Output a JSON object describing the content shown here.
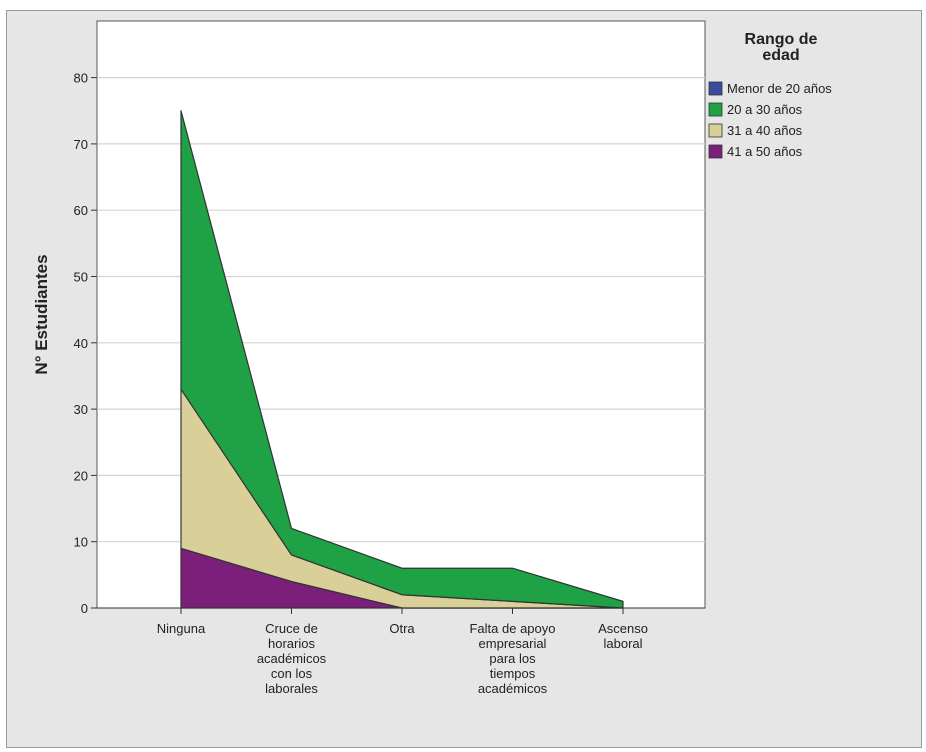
{
  "chart_data": {
    "type": "area",
    "stacked": true,
    "categories": [
      "Ninguna",
      "Cruce de horarios académicos con los laborales",
      "Otra",
      "Falta de apoyo empresarial para los tiempos académicos",
      "Ascenso laboral"
    ],
    "category_lines": [
      [
        "Ninguna"
      ],
      [
        "Cruce de",
        "horarios",
        "académicos",
        "con los",
        "laborales"
      ],
      [
        "Otra"
      ],
      [
        "Falta de apoyo",
        "empresarial",
        "para los",
        "tiempos",
        "académicos"
      ],
      [
        "Ascenso",
        "laboral"
      ]
    ],
    "series": [
      {
        "name": "Menor de 20 años",
        "color": "#3d4a9c",
        "values": [
          0,
          0,
          0,
          0,
          0
        ]
      },
      {
        "name": "41 a 50 años",
        "color": "#7b1f7b",
        "values": [
          9,
          4,
          0,
          0,
          0
        ]
      },
      {
        "name": "31 a 40 años",
        "color": "#d9cf98",
        "values": [
          24,
          4,
          2,
          1,
          0
        ]
      },
      {
        "name": "20 a 30 años",
        "color": "#1fa145",
        "values": [
          42,
          4,
          4,
          5,
          1
        ]
      }
    ],
    "legend": {
      "title": "Rango de edad",
      "title_lines": [
        "Rango de",
        "edad"
      ],
      "position": "right",
      "entries": [
        {
          "label": "Menor de 20 años",
          "color": "#3d4a9c"
        },
        {
          "label": "20 a 30 años",
          "color": "#1fa145"
        },
        {
          "label": "31 a 40 años",
          "color": "#d9cf98"
        },
        {
          "label": "41 a 50 años",
          "color": "#7b1f7b"
        }
      ]
    },
    "ylabel": "N° Estudiantes",
    "xlabel": "",
    "ylim": [
      0,
      80
    ],
    "yticks": [
      0,
      10,
      20,
      30,
      40,
      50,
      60,
      70,
      80
    ],
    "grid": true
  }
}
